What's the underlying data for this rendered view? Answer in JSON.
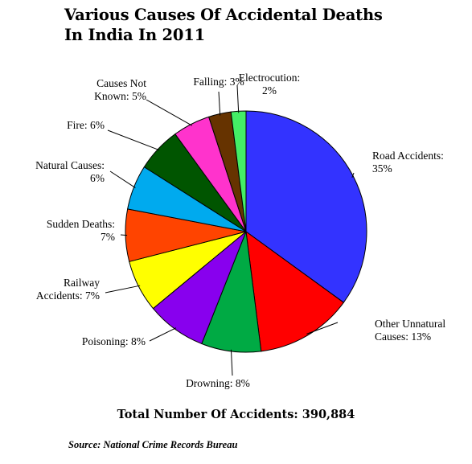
{
  "chart_data": {
    "type": "pie",
    "title_lines": [
      "Various Causes Of Accidental Deaths",
      "In India In 2011"
    ],
    "slices": [
      {
        "label_lines": [
          "Road Accidents:",
          "35%"
        ],
        "value": 35,
        "color": "#3333FF"
      },
      {
        "label_lines": [
          "Other Unnatural",
          "Causes: 13%"
        ],
        "value": 13,
        "color": "#FF0000"
      },
      {
        "label_lines": [
          "Drowning: 8%"
        ],
        "value": 8,
        "color": "#00AA44"
      },
      {
        "label_lines": [
          "Poisoning: 8%"
        ],
        "value": 8,
        "color": "#8800EE"
      },
      {
        "label_lines": [
          "Railway",
          "Accidents: 7%"
        ],
        "value": 7,
        "color": "#FFFF00"
      },
      {
        "label_lines": [
          "Sudden Deaths:",
          "7%"
        ],
        "value": 7,
        "color": "#FF4400"
      },
      {
        "label_lines": [
          "Natural Causes:",
          "6%"
        ],
        "value": 6,
        "color": "#00AAEE"
      },
      {
        "label_lines": [
          "Fire: 6%"
        ],
        "value": 6,
        "color": "#005500"
      },
      {
        "label_lines": [
          "Causes Not",
          "Known: 5%"
        ],
        "value": 5,
        "color": "#FF33CC"
      },
      {
        "label_lines": [
          "Falling: 3%"
        ],
        "value": 3,
        "color": "#663300"
      },
      {
        "label_lines": [
          "Electrocution:",
          "2%"
        ],
        "value": 2,
        "color": "#44EE66"
      }
    ]
  },
  "total_text": "Total Number Of Accidents: 390,884",
  "source_text": "Source: National Crime Records Bureau"
}
